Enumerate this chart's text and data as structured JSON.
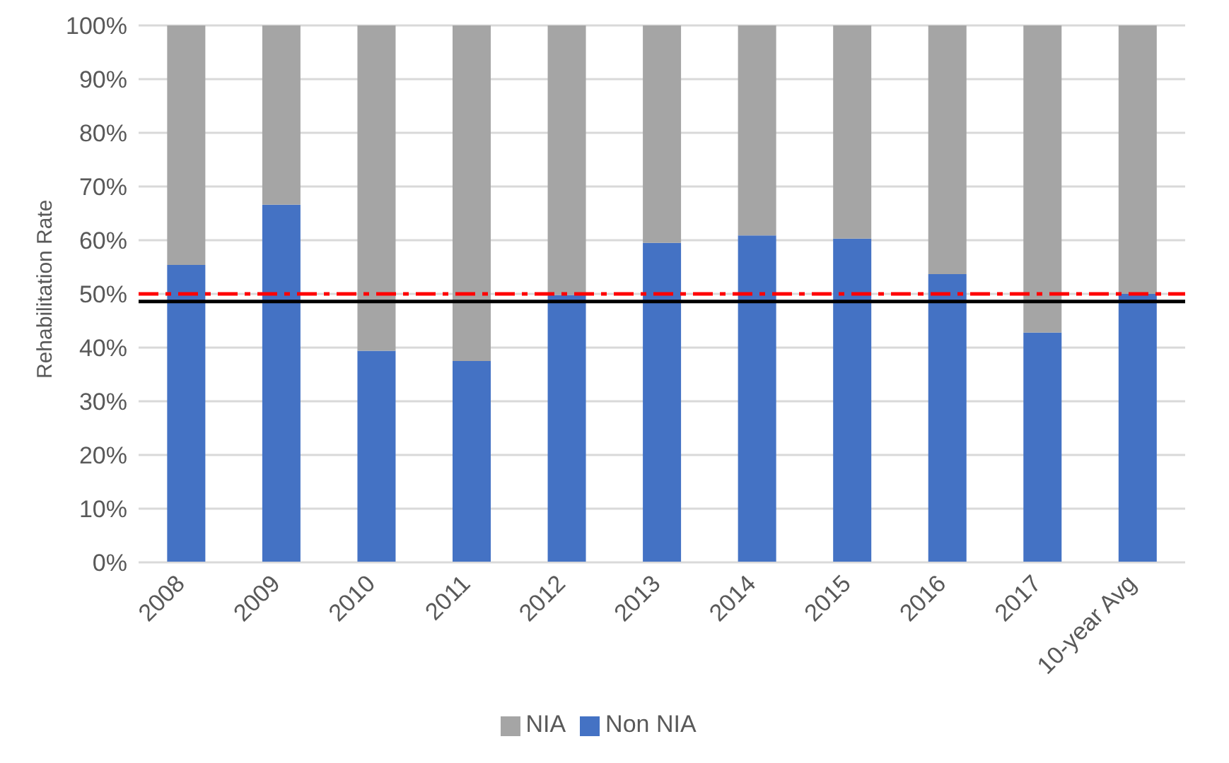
{
  "chart_data": {
    "type": "bar",
    "stacked": true,
    "ylabel": "Rehabilitation Rate",
    "categories": [
      "2008",
      "2009",
      "2010",
      "2011",
      "2012",
      "2013",
      "2014",
      "2015",
      "2016",
      "2017",
      "10-year Avg"
    ],
    "series": [
      {
        "name": "Non NIA",
        "color": "#4472c4",
        "values": [
          55.4,
          66.6,
          39.4,
          37.5,
          49.8,
          59.5,
          60.9,
          60.3,
          53.7,
          42.8,
          50
        ]
      },
      {
        "name": "NIA",
        "color": "#a5a5a5",
        "values": [
          44.6,
          33.4,
          60.6,
          62.5,
          50.2,
          40.5,
          39.1,
          39.7,
          46.3,
          57.2,
          50
        ]
      }
    ],
    "ylim": [
      0,
      100
    ],
    "yticks": [
      {
        "value": 0,
        "label": "0%"
      },
      {
        "value": 10,
        "label": "10%"
      },
      {
        "value": 20,
        "label": "20%"
      },
      {
        "value": 30,
        "label": "30%"
      },
      {
        "value": 40,
        "label": "40%"
      },
      {
        "value": 50,
        "label": "50%"
      },
      {
        "value": 60,
        "label": "60%"
      },
      {
        "value": 70,
        "label": "70%"
      },
      {
        "value": 80,
        "label": "80%"
      },
      {
        "value": 90,
        "label": "90%"
      },
      {
        "value": 100,
        "label": "100%"
      }
    ],
    "ref_lines": [
      {
        "axis": "y",
        "value": 50,
        "color": "#ff0000",
        "line_style": "dashed"
      },
      {
        "axis": "y",
        "value": 48.6,
        "color": "#000000",
        "line_style": "solid"
      }
    ],
    "grid": "y",
    "legend": "bottom"
  }
}
